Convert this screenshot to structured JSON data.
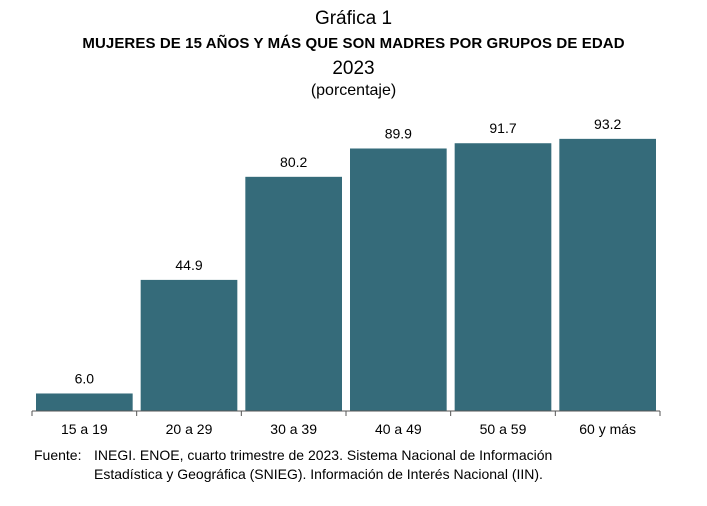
{
  "header": {
    "label": "Gráfica 1",
    "title": "MUJERES DE 15 AÑOS Y MÁS QUE SON MADRES POR GRUPOS DE EDAD",
    "year": "2023",
    "subtitle": "(porcentaje)"
  },
  "chart_data": {
    "type": "bar",
    "categories": [
      "15 a 19",
      "20 a 29",
      "30 a 39",
      "40 a 49",
      "50 a 59",
      "60 y más"
    ],
    "values": [
      6.0,
      44.9,
      80.2,
      89.9,
      91.7,
      93.2
    ],
    "value_labels": [
      "6.0",
      "44.9",
      "80.2",
      "89.9",
      "91.7",
      "93.2"
    ],
    "ylim": [
      0,
      100
    ],
    "bar_color": "#356b7a",
    "axis_color": "#555555",
    "grid": false,
    "legend": "none"
  },
  "footer": {
    "source_prefix": "Fuente:",
    "source_line1": "INEGI. ENOE, cuarto trimestre de 2023. Sistema Nacional de Información",
    "source_line2": "Estadística y Geográfica (SNIEG). Información de Interés Nacional (IIN)."
  }
}
